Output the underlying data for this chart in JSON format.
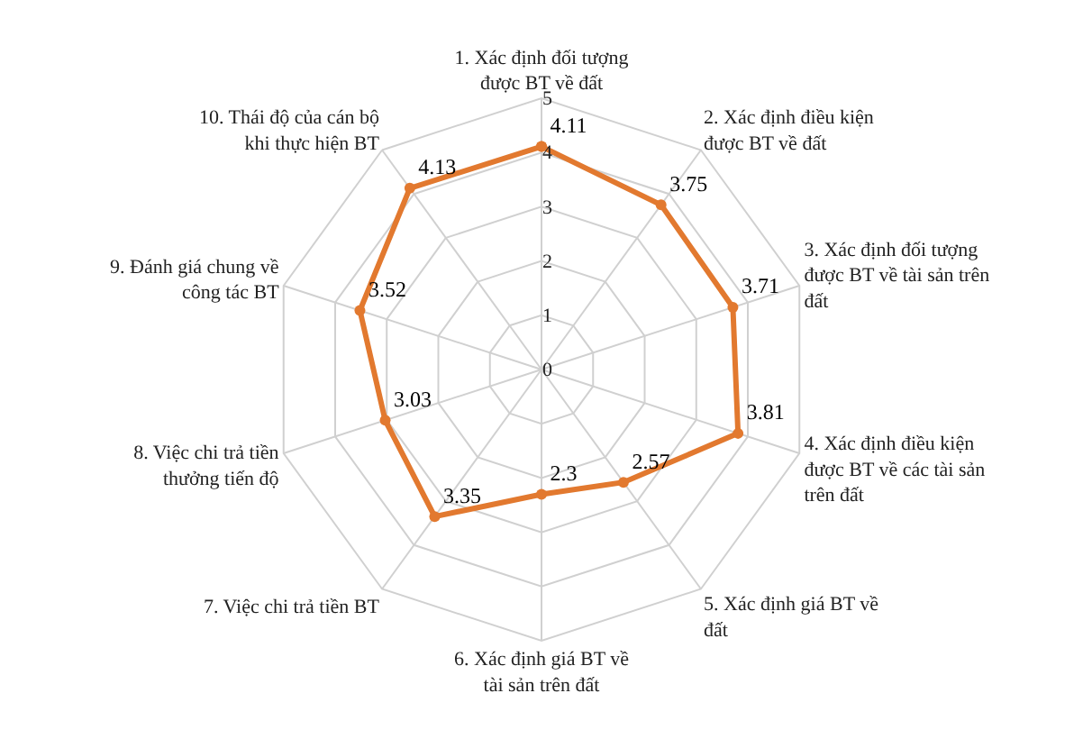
{
  "chart_data": {
    "type": "radar",
    "categories": [
      "1. Xác định đối tượng được BT về đất",
      "2. Xác định điều kiện được BT về đất",
      "3. Xác định đối tượng được BT về tài sản trên đất",
      "4. Xác định điều kiện được BT về các tài sản trên đất",
      "5. Xác định giá BT về đất",
      "6. Xác định giá BT về tài sản trên đất",
      "7. Việc chi trả tiền BT",
      "8. Việc chi trả tiền thưởng tiến độ",
      "9. Đánh giá chung về công tác BT",
      "10. Thái độ của cán bộ khi thực hiện BT"
    ],
    "series": [
      {
        "color": "#e2792f",
        "values": [
          4.11,
          3.75,
          3.71,
          3.81,
          2.57,
          2.3,
          3.35,
          3.03,
          3.52,
          4.13
        ]
      }
    ],
    "ylim": [
      0,
      5
    ],
    "yticks": [
      0,
      1,
      2,
      3,
      4,
      5
    ],
    "grid": true,
    "marker": "circle",
    "line_style": "solid",
    "data_labels": true
  }
}
